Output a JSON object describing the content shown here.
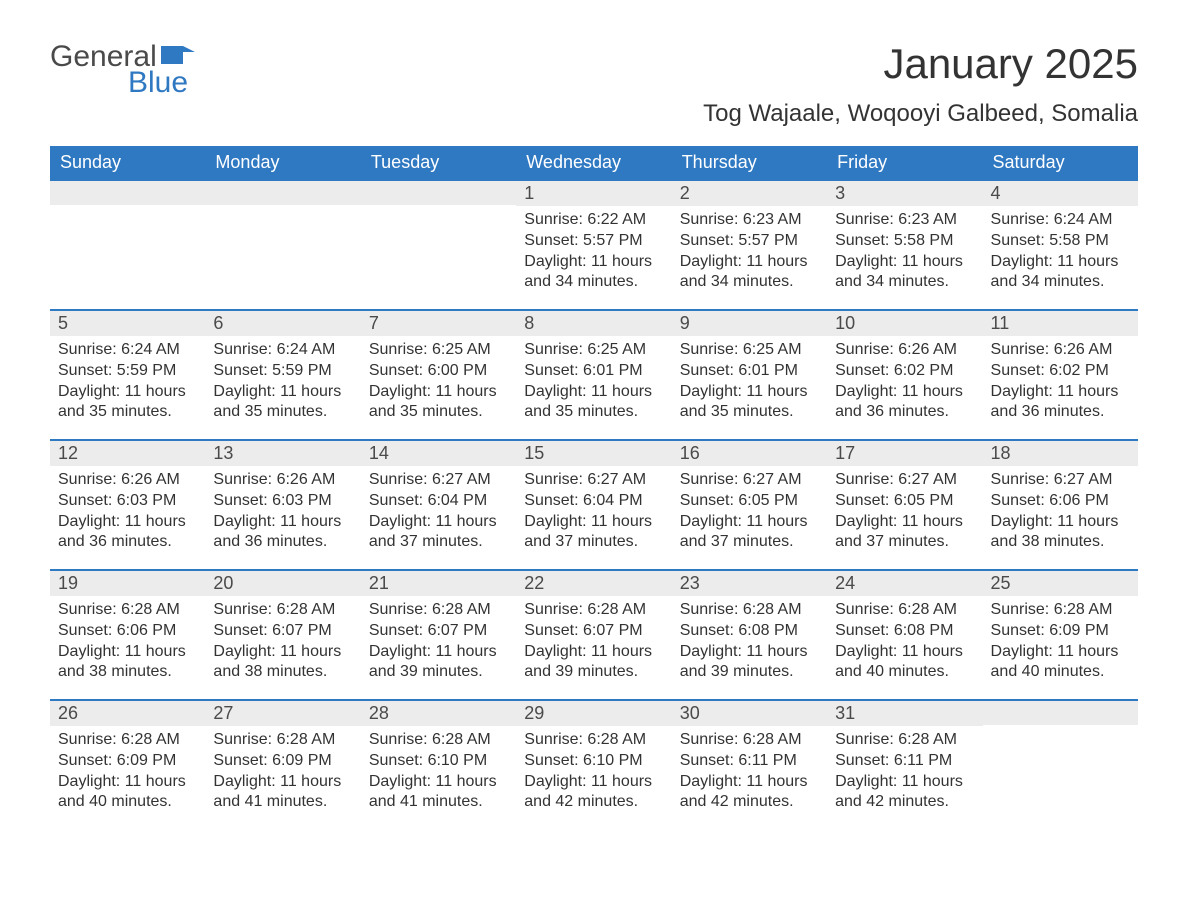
{
  "logo": {
    "word1": "General",
    "word2": "Blue"
  },
  "title": "January 2025",
  "location": "Tog Wajaale, Woqooyi Galbeed, Somalia",
  "colors": {
    "header_bg": "#2f78c2",
    "header_text": "#ffffff",
    "date_bar_bg": "#ececec",
    "date_bar_border": "#2f78c2",
    "body_text": "#333333",
    "logo_gray": "#4a4a4a",
    "logo_blue": "#2f78c2",
    "page_bg": "#ffffff"
  },
  "typography": {
    "title_fontsize": 42,
    "location_fontsize": 24,
    "weekday_fontsize": 18,
    "daynum_fontsize": 18,
    "body_fontsize": 16,
    "font_family": "Arial"
  },
  "layout": {
    "columns": 7,
    "rows": 5,
    "leading_blanks": 3,
    "trailing_blanks": 1
  },
  "weekdays": [
    "Sunday",
    "Monday",
    "Tuesday",
    "Wednesday",
    "Thursday",
    "Friday",
    "Saturday"
  ],
  "labels": {
    "sunrise": "Sunrise:",
    "sunset": "Sunset:",
    "daylight": "Daylight:"
  },
  "days": [
    {
      "n": 1,
      "sunrise": "6:22 AM",
      "sunset": "5:57 PM",
      "daylight": "11 hours and 34 minutes."
    },
    {
      "n": 2,
      "sunrise": "6:23 AM",
      "sunset": "5:57 PM",
      "daylight": "11 hours and 34 minutes."
    },
    {
      "n": 3,
      "sunrise": "6:23 AM",
      "sunset": "5:58 PM",
      "daylight": "11 hours and 34 minutes."
    },
    {
      "n": 4,
      "sunrise": "6:24 AM",
      "sunset": "5:58 PM",
      "daylight": "11 hours and 34 minutes."
    },
    {
      "n": 5,
      "sunrise": "6:24 AM",
      "sunset": "5:59 PM",
      "daylight": "11 hours and 35 minutes."
    },
    {
      "n": 6,
      "sunrise": "6:24 AM",
      "sunset": "5:59 PM",
      "daylight": "11 hours and 35 minutes."
    },
    {
      "n": 7,
      "sunrise": "6:25 AM",
      "sunset": "6:00 PM",
      "daylight": "11 hours and 35 minutes."
    },
    {
      "n": 8,
      "sunrise": "6:25 AM",
      "sunset": "6:01 PM",
      "daylight": "11 hours and 35 minutes."
    },
    {
      "n": 9,
      "sunrise": "6:25 AM",
      "sunset": "6:01 PM",
      "daylight": "11 hours and 35 minutes."
    },
    {
      "n": 10,
      "sunrise": "6:26 AM",
      "sunset": "6:02 PM",
      "daylight": "11 hours and 36 minutes."
    },
    {
      "n": 11,
      "sunrise": "6:26 AM",
      "sunset": "6:02 PM",
      "daylight": "11 hours and 36 minutes."
    },
    {
      "n": 12,
      "sunrise": "6:26 AM",
      "sunset": "6:03 PM",
      "daylight": "11 hours and 36 minutes."
    },
    {
      "n": 13,
      "sunrise": "6:26 AM",
      "sunset": "6:03 PM",
      "daylight": "11 hours and 36 minutes."
    },
    {
      "n": 14,
      "sunrise": "6:27 AM",
      "sunset": "6:04 PM",
      "daylight": "11 hours and 37 minutes."
    },
    {
      "n": 15,
      "sunrise": "6:27 AM",
      "sunset": "6:04 PM",
      "daylight": "11 hours and 37 minutes."
    },
    {
      "n": 16,
      "sunrise": "6:27 AM",
      "sunset": "6:05 PM",
      "daylight": "11 hours and 37 minutes."
    },
    {
      "n": 17,
      "sunrise": "6:27 AM",
      "sunset": "6:05 PM",
      "daylight": "11 hours and 37 minutes."
    },
    {
      "n": 18,
      "sunrise": "6:27 AM",
      "sunset": "6:06 PM",
      "daylight": "11 hours and 38 minutes."
    },
    {
      "n": 19,
      "sunrise": "6:28 AM",
      "sunset": "6:06 PM",
      "daylight": "11 hours and 38 minutes."
    },
    {
      "n": 20,
      "sunrise": "6:28 AM",
      "sunset": "6:07 PM",
      "daylight": "11 hours and 38 minutes."
    },
    {
      "n": 21,
      "sunrise": "6:28 AM",
      "sunset": "6:07 PM",
      "daylight": "11 hours and 39 minutes."
    },
    {
      "n": 22,
      "sunrise": "6:28 AM",
      "sunset": "6:07 PM",
      "daylight": "11 hours and 39 minutes."
    },
    {
      "n": 23,
      "sunrise": "6:28 AM",
      "sunset": "6:08 PM",
      "daylight": "11 hours and 39 minutes."
    },
    {
      "n": 24,
      "sunrise": "6:28 AM",
      "sunset": "6:08 PM",
      "daylight": "11 hours and 40 minutes."
    },
    {
      "n": 25,
      "sunrise": "6:28 AM",
      "sunset": "6:09 PM",
      "daylight": "11 hours and 40 minutes."
    },
    {
      "n": 26,
      "sunrise": "6:28 AM",
      "sunset": "6:09 PM",
      "daylight": "11 hours and 40 minutes."
    },
    {
      "n": 27,
      "sunrise": "6:28 AM",
      "sunset": "6:09 PM",
      "daylight": "11 hours and 41 minutes."
    },
    {
      "n": 28,
      "sunrise": "6:28 AM",
      "sunset": "6:10 PM",
      "daylight": "11 hours and 41 minutes."
    },
    {
      "n": 29,
      "sunrise": "6:28 AM",
      "sunset": "6:10 PM",
      "daylight": "11 hours and 42 minutes."
    },
    {
      "n": 30,
      "sunrise": "6:28 AM",
      "sunset": "6:11 PM",
      "daylight": "11 hours and 42 minutes."
    },
    {
      "n": 31,
      "sunrise": "6:28 AM",
      "sunset": "6:11 PM",
      "daylight": "11 hours and 42 minutes."
    }
  ]
}
